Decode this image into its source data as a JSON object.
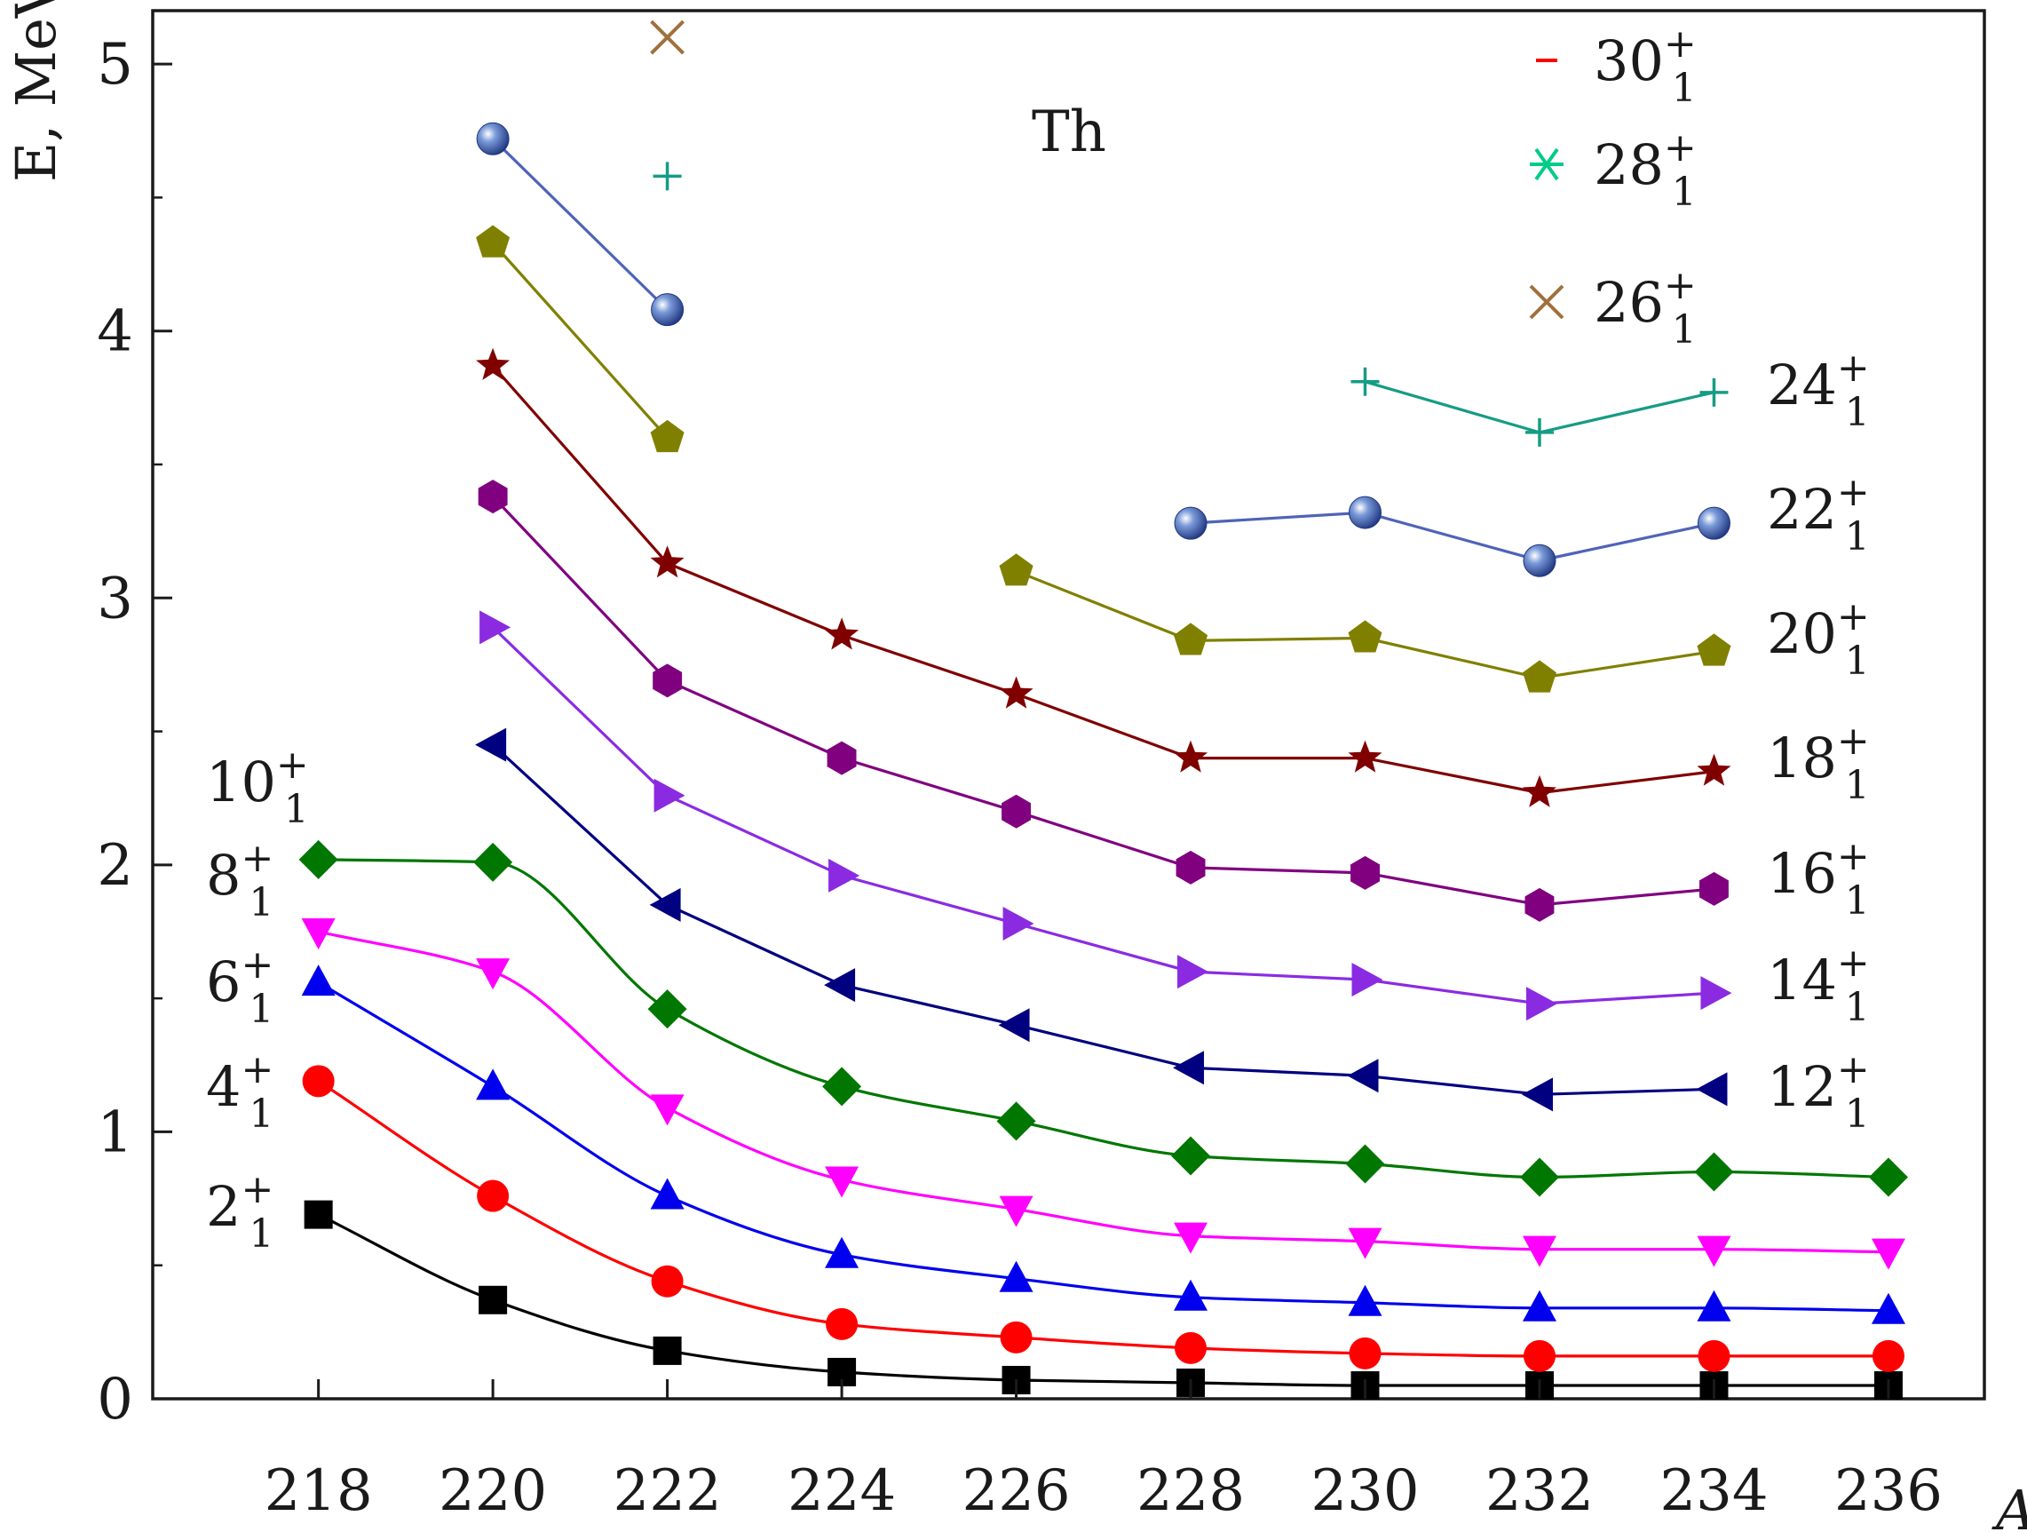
{
  "chart_data": {
    "type": "line",
    "annotation": "Th",
    "xlabel": "A",
    "ylabel": "E, MeV",
    "xlim": [
      216.1,
      237.1
    ],
    "ylim": [
      0,
      5.2
    ],
    "xticks": [
      218,
      220,
      222,
      224,
      226,
      228,
      230,
      232,
      234,
      236
    ],
    "yticks": [
      0,
      1,
      2,
      3,
      4,
      5
    ],
    "grid": false,
    "series": [
      {
        "name": "2",
        "color": "#000000",
        "marker": "square",
        "smooth": true,
        "x": [
          218,
          220,
          222,
          224,
          226,
          228,
          230,
          232,
          234,
          236
        ],
        "y": [
          0.69,
          0.37,
          0.18,
          0.1,
          0.07,
          0.06,
          0.05,
          0.05,
          0.05,
          0.05
        ]
      },
      {
        "name": "4",
        "color": "#ff0000",
        "marker": "circle",
        "smooth": true,
        "x": [
          218,
          220,
          222,
          224,
          226,
          228,
          230,
          232,
          234,
          236
        ],
        "y": [
          1.19,
          0.76,
          0.44,
          0.28,
          0.23,
          0.19,
          0.17,
          0.16,
          0.16,
          0.16
        ]
      },
      {
        "name": "6",
        "color": "#0000ee",
        "marker": "triangle-up",
        "smooth": true,
        "x": [
          218,
          220,
          222,
          224,
          226,
          228,
          230,
          232,
          234,
          236
        ],
        "y": [
          1.56,
          1.17,
          0.76,
          0.54,
          0.45,
          0.38,
          0.36,
          0.34,
          0.34,
          0.33
        ]
      },
      {
        "name": "8",
        "color": "#ff00ff",
        "marker": "triangle-down",
        "smooth": true,
        "x": [
          218,
          220,
          222,
          224,
          226,
          228,
          230,
          232,
          234,
          236
        ],
        "y": [
          1.75,
          1.6,
          1.09,
          0.82,
          0.71,
          0.61,
          0.59,
          0.56,
          0.56,
          0.55
        ]
      },
      {
        "name": "10",
        "color": "#007700",
        "marker": "diamond",
        "smooth": true,
        "x": [
          218,
          220,
          222,
          224,
          226,
          228,
          230,
          232,
          234,
          236
        ],
        "y": [
          2.02,
          2.01,
          1.46,
          1.17,
          1.04,
          0.91,
          0.88,
          0.83,
          0.85,
          0.83
        ]
      },
      {
        "name": "12",
        "color": "#000080",
        "marker": "triangle-left",
        "smooth": false,
        "x": [
          220,
          222,
          224,
          226,
          228,
          230,
          232,
          234
        ],
        "y": [
          2.45,
          1.85,
          1.55,
          1.4,
          1.24,
          1.21,
          1.14,
          1.16
        ]
      },
      {
        "name": "14",
        "color": "#8a2be2",
        "marker": "triangle-right",
        "smooth": false,
        "x": [
          220,
          222,
          224,
          226,
          228,
          230,
          232,
          234
        ],
        "y": [
          2.89,
          2.26,
          1.96,
          1.78,
          1.6,
          1.57,
          1.48,
          1.52
        ]
      },
      {
        "name": "16",
        "color": "#800080",
        "marker": "hexagon",
        "smooth": false,
        "x": [
          220,
          222,
          224,
          226,
          228,
          230,
          232,
          234
        ],
        "y": [
          3.38,
          2.69,
          2.4,
          2.2,
          1.99,
          1.97,
          1.85,
          1.91
        ]
      },
      {
        "name": "18",
        "color": "#800000",
        "marker": "star",
        "smooth": false,
        "x": [
          220,
          222,
          224,
          226,
          228,
          230,
          232,
          234
        ],
        "y": [
          3.87,
          3.13,
          2.86,
          2.64,
          2.4,
          2.4,
          2.27,
          2.35
        ]
      },
      {
        "name": "20",
        "color": "#808000",
        "marker": "pentagon",
        "smooth": false,
        "segments": [
          {
            "x": [
              220,
              222
            ],
            "y": [
              4.33,
              3.6
            ]
          },
          {
            "x": [
              226,
              228,
              230,
              232,
              234
            ],
            "y": [
              3.1,
              2.84,
              2.85,
              2.7,
              2.8
            ]
          }
        ]
      },
      {
        "name": "22",
        "color": "#4f63b8",
        "marker": "sphere",
        "smooth": false,
        "segments": [
          {
            "x": [
              220,
              222
            ],
            "y": [
              4.72,
              4.08
            ]
          },
          {
            "x": [
              228,
              230,
              232,
              234
            ],
            "y": [
              3.28,
              3.32,
              3.14,
              3.28
            ]
          }
        ]
      },
      {
        "name": "24",
        "color": "#169c84",
        "marker": "plus",
        "smooth": false,
        "segments": [
          {
            "x": [
              222
            ],
            "y": [
              4.58
            ]
          },
          {
            "x": [
              230,
              232,
              234
            ],
            "y": [
              3.81,
              3.62,
              3.77
            ]
          }
        ]
      },
      {
        "name": "26",
        "color": "#a0703c",
        "marker": "x",
        "smooth": false,
        "x": [
          222
        ],
        "y": [
          5.1
        ]
      },
      {
        "name": "28",
        "color": "#00cc88",
        "marker": "asterisk",
        "smooth": false,
        "x": [],
        "y": []
      },
      {
        "name": "30",
        "color": "#ff0000",
        "marker": "hline",
        "smooth": false,
        "x": [],
        "y": []
      }
    ],
    "level_labels": {
      "sup": "+",
      "sub": "1",
      "left": [
        "10",
        "8",
        "6",
        "4",
        "2"
      ],
      "right": [
        "24",
        "22",
        "20",
        "18",
        "16",
        "14",
        "12"
      ],
      "legend": [
        "30",
        "28",
        "26"
      ]
    }
  }
}
